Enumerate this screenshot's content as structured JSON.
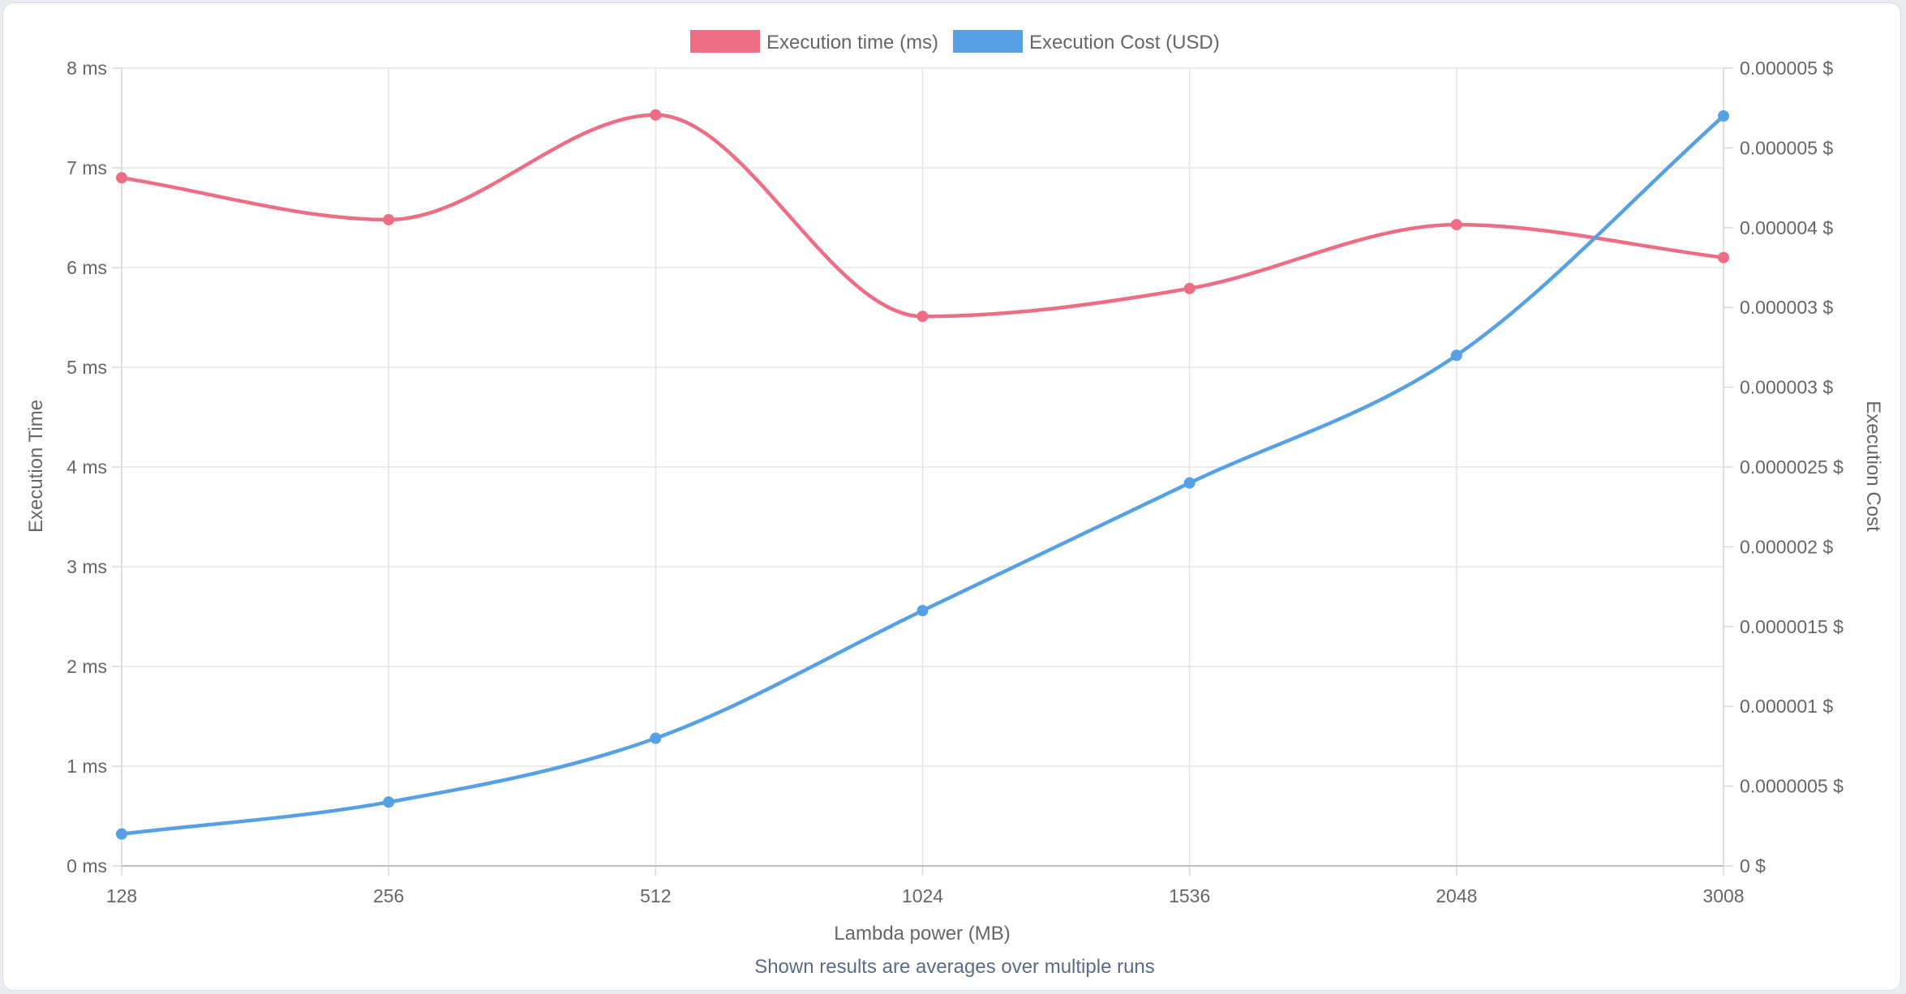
{
  "chart_data": {
    "type": "line",
    "categories": [
      "128",
      "256",
      "512",
      "1024",
      "1536",
      "2048",
      "3008"
    ],
    "xlabel": "Lambda power (MB)",
    "caption": "Shown results are averages over multiple runs",
    "y_left": {
      "label": "Execution Time",
      "range": [
        0,
        8
      ],
      "ticks": [
        0,
        1,
        2,
        3,
        4,
        5,
        6,
        7,
        8
      ],
      "tick_labels": [
        "0 ms",
        "1 ms",
        "2 ms",
        "3 ms",
        "4 ms",
        "5 ms",
        "6 ms",
        "7 ms",
        "8 ms"
      ]
    },
    "y_right": {
      "label": "Execution Cost",
      "range": [
        0,
        5e-06
      ],
      "ticks": [
        0,
        5e-07,
        1e-06,
        1.5e-06,
        2e-06,
        2.5e-06,
        3e-06,
        3.5e-06,
        4e-06,
        4.5e-06,
        5e-06
      ],
      "tick_labels": [
        "0 $",
        "0.0000005 $",
        "0.000001 $",
        "0.0000015 $",
        "0.000002 $",
        "0.0000025 $",
        "0.000003 $",
        "0.000003 $",
        "0.000004 $",
        "0.000005 $",
        "0.000005 $"
      ]
    },
    "series": [
      {
        "name": "Execution time (ms)",
        "axis": "left",
        "color": "#ed6d85",
        "values": [
          6.9,
          6.48,
          7.53,
          5.51,
          5.79,
          6.43,
          6.1
        ]
      },
      {
        "name": "Execution Cost (USD)",
        "axis": "right",
        "color": "#56a0e5",
        "values": [
          2e-07,
          4e-07,
          8e-07,
          1.6e-06,
          2.4e-06,
          3.2e-06,
          4.7e-06
        ]
      }
    ],
    "grid": true,
    "legend_position": "top-center"
  }
}
